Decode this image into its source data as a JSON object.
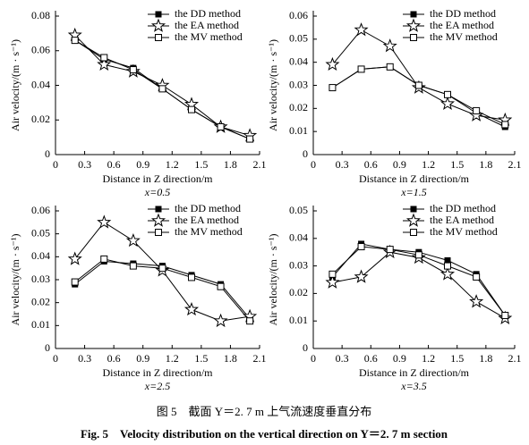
{
  "chart_data": [
    {
      "type": "line",
      "subtitle": "x=0.5",
      "xlabel": "Distance in Z direction/m",
      "ylabel": "Air velocity/(m · s⁻¹)",
      "x": [
        0.2,
        0.5,
        0.8,
        1.1,
        1.4,
        1.7,
        2.0
      ],
      "xlim": [
        0,
        2.1
      ],
      "xticks": [
        0,
        0.3,
        0.6,
        0.9,
        1.2,
        1.5,
        1.8,
        2.1
      ],
      "ylim": [
        0,
        0.08
      ],
      "yticks": [
        0,
        0.02,
        0.04,
        0.06,
        0.08
      ],
      "legend": "top-right",
      "series": [
        {
          "name": "the DD method",
          "color": "#000000",
          "marker": "square-filled",
          "values": [
            0.066,
            0.055,
            0.05,
            0.038,
            0.026,
            0.016,
            0.009
          ]
        },
        {
          "name": "the EA method",
          "color": "#000000",
          "marker": "star",
          "values": [
            0.069,
            0.052,
            0.048,
            0.04,
            0.029,
            0.016,
            0.011
          ]
        },
        {
          "name": "the MV method",
          "color": "#000000",
          "marker": "square-open",
          "values": [
            0.066,
            0.056,
            0.049,
            0.038,
            0.026,
            0.016,
            0.009
          ]
        }
      ]
    },
    {
      "type": "line",
      "subtitle": "x=1.5",
      "xlabel": "Distance in Z direction/m",
      "ylabel": "Air velocity/(m · s⁻¹)",
      "x": [
        0.2,
        0.5,
        0.8,
        1.1,
        1.4,
        1.7,
        2.0
      ],
      "xlim": [
        0,
        2.1
      ],
      "xticks": [
        0,
        0.3,
        0.6,
        0.9,
        1.2,
        1.5,
        1.8,
        2.1
      ],
      "ylim": [
        0,
        0.06
      ],
      "yticks": [
        0,
        0.01,
        0.02,
        0.03,
        0.04,
        0.05,
        0.06
      ],
      "legend": "top-right",
      "series": [
        {
          "name": "the DD method",
          "color": "#000000",
          "marker": "square-filled",
          "values": [
            0.029,
            0.037,
            0.038,
            0.03,
            0.026,
            0.018,
            0.012
          ]
        },
        {
          "name": "the EA method",
          "color": "#000000",
          "marker": "star",
          "values": [
            0.039,
            0.054,
            0.047,
            0.029,
            0.022,
            0.017,
            0.015
          ]
        },
        {
          "name": "the MV method",
          "color": "#000000",
          "marker": "square-open",
          "values": [
            0.029,
            0.037,
            0.038,
            0.03,
            0.026,
            0.019,
            0.013
          ]
        }
      ]
    },
    {
      "type": "line",
      "subtitle": "x=2.5",
      "xlabel": "Distance in Z direction/m",
      "ylabel": "Air velocity/(m · s⁻¹)",
      "x": [
        0.2,
        0.5,
        0.8,
        1.1,
        1.4,
        1.7,
        2.0
      ],
      "xlim": [
        0,
        2.1
      ],
      "xticks": [
        0,
        0.3,
        0.6,
        0.9,
        1.2,
        1.5,
        1.8,
        2.1
      ],
      "ylim": [
        0,
        0.06
      ],
      "yticks": [
        0,
        0.01,
        0.02,
        0.03,
        0.04,
        0.05,
        0.06
      ],
      "legend": "top-right",
      "series": [
        {
          "name": "the DD method",
          "color": "#000000",
          "marker": "square-filled",
          "values": [
            0.028,
            0.038,
            0.037,
            0.036,
            0.032,
            0.028,
            0.013
          ]
        },
        {
          "name": "the EA method",
          "color": "#000000",
          "marker": "star",
          "values": [
            0.039,
            0.055,
            0.047,
            0.034,
            0.017,
            0.012,
            0.014
          ]
        },
        {
          "name": "the MV method",
          "color": "#000000",
          "marker": "square-open",
          "values": [
            0.029,
            0.039,
            0.036,
            0.035,
            0.031,
            0.027,
            0.012
          ]
        }
      ]
    },
    {
      "type": "line",
      "subtitle": "x=3.5",
      "xlabel": "Distance in Z direction/m",
      "ylabel": "Air velocity/(m · s⁻¹)",
      "x": [
        0.2,
        0.5,
        0.8,
        1.1,
        1.4,
        1.7,
        2.0
      ],
      "xlim": [
        0,
        2.1
      ],
      "xticks": [
        0,
        0.3,
        0.6,
        0.9,
        1.2,
        1.5,
        1.8,
        2.1
      ],
      "ylim": [
        0,
        0.05
      ],
      "yticks": [
        0,
        0.01,
        0.02,
        0.03,
        0.04,
        0.05
      ],
      "legend": "top-right",
      "series": [
        {
          "name": "the DD method",
          "color": "#000000",
          "marker": "square-filled",
          "values": [
            0.026,
            0.038,
            0.036,
            0.035,
            0.032,
            0.027,
            0.012
          ]
        },
        {
          "name": "the EA method",
          "color": "#000000",
          "marker": "star",
          "values": [
            0.024,
            0.026,
            0.035,
            0.033,
            0.027,
            0.017,
            0.011
          ]
        },
        {
          "name": "the MV method",
          "color": "#000000",
          "marker": "square-open",
          "values": [
            0.027,
            0.037,
            0.036,
            0.034,
            0.03,
            0.026,
            0.012
          ]
        }
      ]
    }
  ],
  "caption_cn": "图 5　截面 Y＝2. 7 m 上气流速度垂直分布",
  "caption_en": "Fig. 5　Velocity distribution on the vertical direction on Y＝2. 7 m section"
}
